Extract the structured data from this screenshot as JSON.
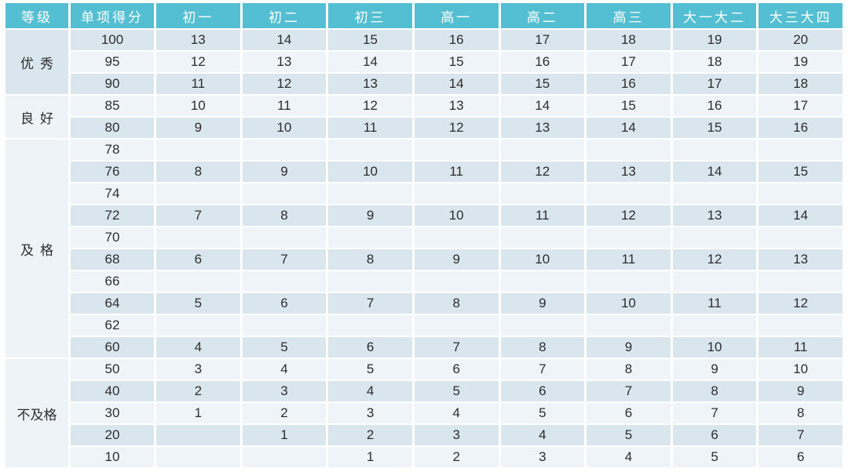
{
  "colors": {
    "header_bg": "#54BFD2",
    "header_text": "#FFFFFF",
    "row_stripe_dark": "#DAE6EE",
    "row_stripe_light": "#EFF4F8",
    "group_cell_light": "#EDF3F7",
    "cell_text": "#2D2D2D",
    "page_bg": "#FFFFFF"
  },
  "chart_data": {
    "type": "table",
    "title": "",
    "columns": [
      "等级",
      "单项得分",
      "初一",
      "初二",
      "初三",
      "高一",
      "高二",
      "高三",
      "大一大二",
      "大三大四"
    ],
    "groups": [
      {
        "grade": "优秀",
        "rows": [
          {
            "score": 100,
            "values": [
              13,
              14,
              15,
              16,
              17,
              18,
              19,
              20
            ]
          },
          {
            "score": 95,
            "values": [
              12,
              13,
              14,
              15,
              16,
              17,
              18,
              19
            ]
          },
          {
            "score": 90,
            "values": [
              11,
              12,
              13,
              14,
              15,
              16,
              17,
              18
            ]
          }
        ]
      },
      {
        "grade": "良好",
        "rows": [
          {
            "score": 85,
            "values": [
              10,
              11,
              12,
              13,
              14,
              15,
              16,
              17
            ]
          },
          {
            "score": 80,
            "values": [
              9,
              10,
              11,
              12,
              13,
              14,
              15,
              16
            ]
          }
        ]
      },
      {
        "grade": "及格",
        "rows": [
          {
            "score": 78,
            "values": [
              null,
              null,
              null,
              null,
              null,
              null,
              null,
              null
            ]
          },
          {
            "score": 76,
            "values": [
              8,
              9,
              10,
              11,
              12,
              13,
              14,
              15
            ]
          },
          {
            "score": 74,
            "values": [
              null,
              null,
              null,
              null,
              null,
              null,
              null,
              null
            ]
          },
          {
            "score": 72,
            "values": [
              7,
              8,
              9,
              10,
              11,
              12,
              13,
              14
            ]
          },
          {
            "score": 70,
            "values": [
              null,
              null,
              null,
              null,
              null,
              null,
              null,
              null
            ]
          },
          {
            "score": 68,
            "values": [
              6,
              7,
              8,
              9,
              10,
              11,
              12,
              13
            ]
          },
          {
            "score": 66,
            "values": [
              null,
              null,
              null,
              null,
              null,
              null,
              null,
              null
            ]
          },
          {
            "score": 64,
            "values": [
              5,
              6,
              7,
              8,
              9,
              10,
              11,
              12
            ]
          },
          {
            "score": 62,
            "values": [
              null,
              null,
              null,
              null,
              null,
              null,
              null,
              null
            ]
          },
          {
            "score": 60,
            "values": [
              4,
              5,
              6,
              7,
              8,
              9,
              10,
              11
            ]
          }
        ]
      },
      {
        "grade": "不及格",
        "rows": [
          {
            "score": 50,
            "values": [
              3,
              4,
              5,
              6,
              7,
              8,
              9,
              10
            ]
          },
          {
            "score": 40,
            "values": [
              2,
              3,
              4,
              5,
              6,
              7,
              8,
              9
            ]
          },
          {
            "score": 30,
            "values": [
              1,
              2,
              3,
              4,
              5,
              6,
              7,
              8
            ]
          },
          {
            "score": 20,
            "values": [
              null,
              1,
              2,
              3,
              4,
              5,
              6,
              7
            ]
          },
          {
            "score": 10,
            "values": [
              null,
              null,
              1,
              2,
              3,
              4,
              5,
              6
            ]
          }
        ]
      }
    ]
  }
}
